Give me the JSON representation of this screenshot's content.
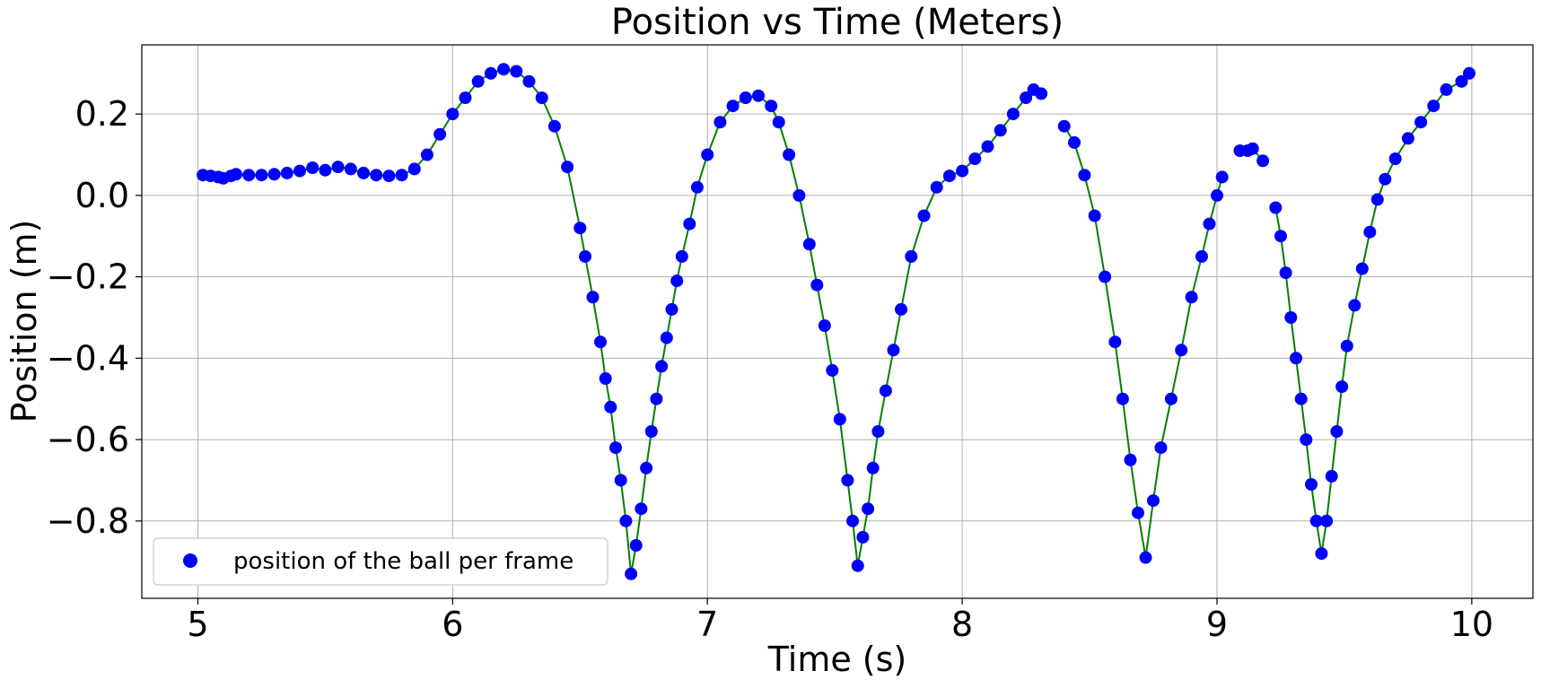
{
  "chart_data": {
    "type": "scatter",
    "title": "Position vs Time (Meters)",
    "xlabel": "Time (s)",
    "ylabel": "Position (m)",
    "xlim": [
      4.78,
      10.24
    ],
    "ylim": [
      -0.99,
      0.37
    ],
    "x_ticks": [
      5,
      6,
      7,
      8,
      9,
      10
    ],
    "x_tick_labels": [
      "5",
      "6",
      "7",
      "8",
      "9",
      "10"
    ],
    "y_ticks": [
      0.2,
      0.0,
      -0.2,
      -0.4,
      -0.6,
      -0.8
    ],
    "y_tick_labels": [
      "0.2",
      "0.0",
      "−0.2",
      "−0.4",
      "−0.6",
      "−0.8"
    ],
    "grid": true,
    "legend_position": "lower-left",
    "colors": {
      "points": "#0000ff",
      "line": "#008000",
      "grid": "#b0b0b0"
    },
    "series": [
      {
        "name": "position of the ball per frame",
        "marker": "circle",
        "connect_with_line": true,
        "segments": [
          {
            "t": [
              5.02,
              5.05,
              5.08,
              5.1,
              5.13,
              5.15,
              5.2,
              5.25,
              5.3,
              5.35,
              5.4,
              5.45,
              5.5,
              5.55,
              5.6,
              5.65,
              5.7,
              5.75,
              5.8,
              5.85,
              5.9,
              5.95,
              6.0,
              6.05,
              6.1,
              6.15,
              6.2,
              6.25,
              6.3,
              6.35,
              6.4,
              6.45,
              6.5,
              6.52,
              6.55,
              6.58,
              6.6,
              6.62,
              6.64,
              6.66,
              6.68,
              6.7,
              6.72,
              6.74,
              6.76,
              6.78,
              6.8,
              6.82,
              6.84,
              6.86,
              6.88,
              6.9,
              6.93,
              6.96,
              7.0,
              7.05,
              7.1,
              7.15,
              7.2,
              7.25,
              7.28,
              7.32,
              7.36,
              7.4,
              7.43,
              7.46,
              7.49,
              7.52,
              7.55,
              7.57,
              7.59,
              7.61,
              7.63,
              7.65,
              7.67,
              7.7,
              7.73,
              7.76,
              7.8,
              7.85,
              7.9,
              7.95,
              8.0,
              8.05,
              8.1,
              8.15,
              8.2,
              8.25,
              8.28,
              8.31
            ],
            "y": [
              0.05,
              0.048,
              0.045,
              0.042,
              0.048,
              0.052,
              0.05,
              0.05,
              0.052,
              0.055,
              0.06,
              0.068,
              0.062,
              0.07,
              0.065,
              0.055,
              0.05,
              0.048,
              0.05,
              0.065,
              0.1,
              0.15,
              0.2,
              0.24,
              0.28,
              0.3,
              0.31,
              0.305,
              0.28,
              0.24,
              0.17,
              0.07,
              -0.08,
              -0.15,
              -0.25,
              -0.36,
              -0.45,
              -0.52,
              -0.62,
              -0.7,
              -0.8,
              -0.93,
              -0.86,
              -0.77,
              -0.67,
              -0.58,
              -0.5,
              -0.42,
              -0.35,
              -0.28,
              -0.21,
              -0.15,
              -0.07,
              0.02,
              0.1,
              0.18,
              0.22,
              0.24,
              0.245,
              0.22,
              0.18,
              0.1,
              0.0,
              -0.12,
              -0.22,
              -0.32,
              -0.43,
              -0.55,
              -0.7,
              -0.8,
              -0.91,
              -0.84,
              -0.77,
              -0.67,
              -0.58,
              -0.48,
              -0.38,
              -0.28,
              -0.15,
              -0.05,
              0.02,
              0.048,
              0.06,
              0.09,
              0.12,
              0.16,
              0.2,
              0.24,
              0.26,
              0.25
            ]
          },
          {
            "t": [
              8.4,
              8.44,
              8.48,
              8.52,
              8.56,
              8.6,
              8.63,
              8.66,
              8.69,
              8.72,
              8.75,
              8.78,
              8.82,
              8.86,
              8.9,
              8.94,
              8.97,
              9.0,
              9.02
            ],
            "y": [
              0.17,
              0.13,
              0.05,
              -0.05,
              -0.2,
              -0.36,
              -0.5,
              -0.65,
              -0.78,
              -0.89,
              -0.75,
              -0.62,
              -0.5,
              -0.38,
              -0.25,
              -0.15,
              -0.07,
              0.0,
              0.045
            ]
          },
          {
            "t": [
              9.09,
              9.12,
              9.14,
              9.18
            ],
            "y": [
              0.11,
              0.11,
              0.115,
              0.085
            ]
          },
          {
            "t": [
              9.23,
              9.25,
              9.27,
              9.29,
              9.31,
              9.33,
              9.35,
              9.37,
              9.39,
              9.41,
              9.43,
              9.45,
              9.47,
              9.49,
              9.51,
              9.54,
              9.57,
              9.6,
              9.63,
              9.66,
              9.7,
              9.75,
              9.8,
              9.85,
              9.9,
              9.96,
              9.99
            ],
            "y": [
              -0.03,
              -0.1,
              -0.19,
              -0.3,
              -0.4,
              -0.5,
              -0.6,
              -0.71,
              -0.8,
              -0.88,
              -0.8,
              -0.69,
              -0.58,
              -0.47,
              -0.37,
              -0.27,
              -0.18,
              -0.09,
              -0.01,
              0.04,
              0.09,
              0.14,
              0.18,
              0.22,
              0.26,
              0.28,
              0.3
            ]
          }
        ]
      }
    ]
  }
}
